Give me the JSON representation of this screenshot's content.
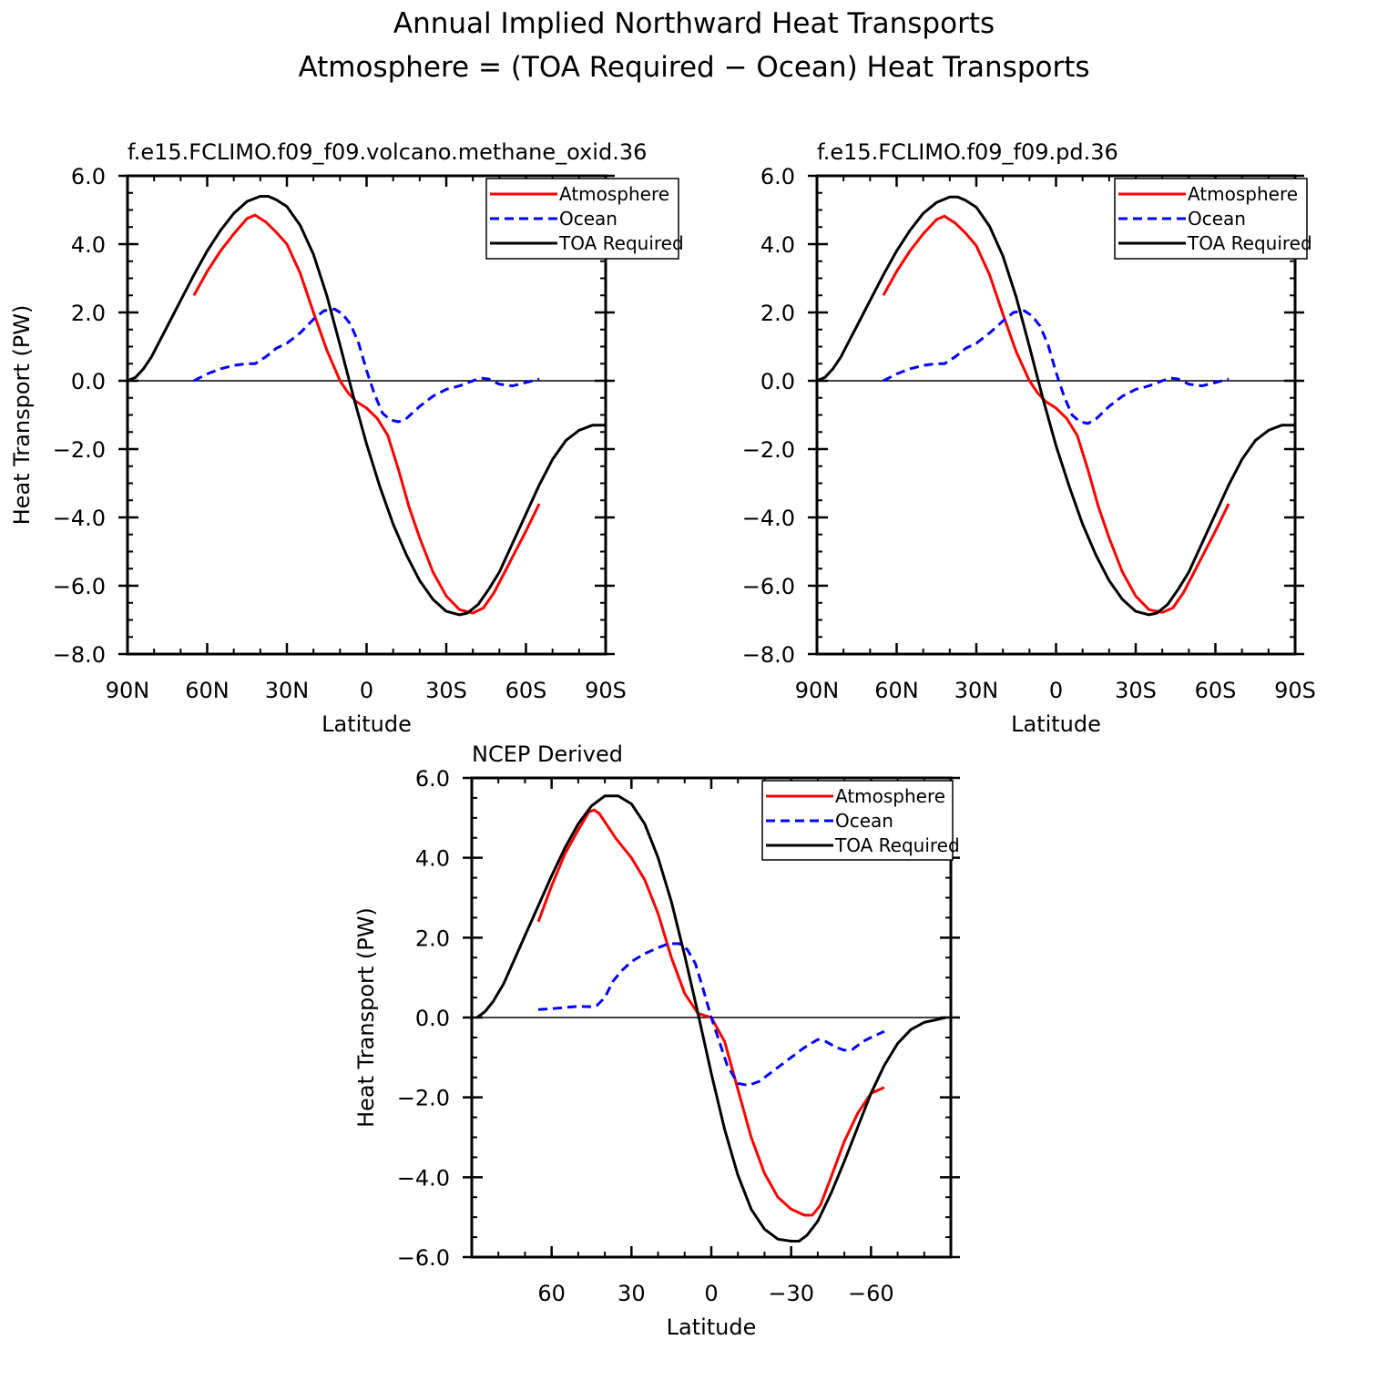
{
  "figure": {
    "title_line1": "Annual Implied Northward Heat Transports",
    "title_line2": "Atmosphere = (TOA Required − Ocean) Heat Transports"
  },
  "chart_data": [
    {
      "type": "line",
      "title": "f.e15.FCLIMO.f09_f09.volcano.methane_oxid.36",
      "xlabel": "Latitude",
      "ylabel": "Heat Transport (PW)",
      "xlim": [
        90,
        -90
      ],
      "ylim": [
        -8,
        6
      ],
      "xticks": [
        {
          "v": 90,
          "label": "90N"
        },
        {
          "v": 60,
          "label": "60N"
        },
        {
          "v": 30,
          "label": "30N"
        },
        {
          "v": 0,
          "label": "0"
        },
        {
          "v": -30,
          "label": "30S"
        },
        {
          "v": -60,
          "label": "60S"
        },
        {
          "v": -90,
          "label": "90S"
        }
      ],
      "yticks": [
        {
          "v": 6,
          "label": "6.0"
        },
        {
          "v": 4,
          "label": "4.0"
        },
        {
          "v": 2,
          "label": "2.0"
        },
        {
          "v": 0,
          "label": "0.0"
        },
        {
          "v": -2,
          "label": "−2.0"
        },
        {
          "v": -4,
          "label": "−4.0"
        },
        {
          "v": -6,
          "label": "−6.0"
        },
        {
          "v": -8,
          "label": "−8.0"
        }
      ],
      "xminor": 10,
      "yminor": 0.5,
      "zero_line": true,
      "legend": "top-right",
      "series": [
        {
          "name": "Atmosphere",
          "color": "#ff0000",
          "dash": "solid",
          "x": [
            65,
            60,
            55,
            50,
            45,
            42,
            38,
            34,
            30,
            25,
            20,
            15,
            10,
            7,
            4,
            0,
            -4,
            -8,
            -12,
            -16,
            -20,
            -25,
            -30,
            -35,
            -40,
            -44,
            -48,
            -52,
            -56,
            -60,
            -65
          ],
          "y": [
            2.5,
            3.2,
            3.8,
            4.3,
            4.75,
            4.85,
            4.65,
            4.35,
            4.0,
            3.15,
            2.0,
            0.9,
            0.0,
            -0.35,
            -0.6,
            -0.8,
            -1.1,
            -1.6,
            -2.6,
            -3.7,
            -4.6,
            -5.6,
            -6.3,
            -6.7,
            -6.8,
            -6.65,
            -6.2,
            -5.6,
            -5.0,
            -4.4,
            -3.6
          ]
        },
        {
          "name": "Ocean",
          "color": "#0000ff",
          "dash": "dashed",
          "x": [
            65,
            60,
            55,
            50,
            45,
            42,
            38,
            34,
            30,
            25,
            20,
            16,
            12,
            9,
            6,
            3,
            0,
            -3,
            -6,
            -9,
            -12,
            -15,
            -20,
            -25,
            -30,
            -35,
            -40,
            -43,
            -46,
            -50,
            -55,
            -60,
            -65
          ],
          "y": [
            0.0,
            0.2,
            0.35,
            0.45,
            0.5,
            0.5,
            0.7,
            0.95,
            1.1,
            1.4,
            1.8,
            2.05,
            2.1,
            1.95,
            1.65,
            1.1,
            0.3,
            -0.4,
            -0.95,
            -1.15,
            -1.2,
            -1.1,
            -0.75,
            -0.45,
            -0.25,
            -0.15,
            0.0,
            0.08,
            0.05,
            -0.1,
            -0.15,
            -0.05,
            0.05
          ]
        },
        {
          "name": "TOA Required",
          "color": "#000000",
          "dash": "solid",
          "x": [
            90,
            87,
            84,
            81,
            78,
            75,
            70,
            65,
            60,
            55,
            50,
            45,
            40,
            37,
            34,
            30,
            25,
            20,
            15,
            10,
            5,
            0,
            -5,
            -10,
            -15,
            -20,
            -25,
            -30,
            -35,
            -38,
            -42,
            -46,
            -50,
            -55,
            -60,
            -65,
            -70,
            -75,
            -80,
            -85,
            -90
          ],
          "y": [
            0.0,
            0.1,
            0.35,
            0.7,
            1.15,
            1.6,
            2.35,
            3.1,
            3.8,
            4.4,
            4.9,
            5.25,
            5.4,
            5.4,
            5.3,
            5.1,
            4.55,
            3.7,
            2.5,
            1.05,
            -0.45,
            -1.85,
            -3.1,
            -4.2,
            -5.1,
            -5.85,
            -6.4,
            -6.75,
            -6.85,
            -6.8,
            -6.55,
            -6.1,
            -5.6,
            -4.75,
            -3.9,
            -3.05,
            -2.3,
            -1.75,
            -1.45,
            -1.3,
            -1.3
          ]
        }
      ]
    },
    {
      "type": "line",
      "title": "f.e15.FCLIMO.f09_f09.pd.36",
      "xlabel": "Latitude",
      "ylabel": "",
      "xlim": [
        90,
        -90
      ],
      "ylim": [
        -8,
        6
      ],
      "xticks": [
        {
          "v": 90,
          "label": "90N"
        },
        {
          "v": 60,
          "label": "60N"
        },
        {
          "v": 30,
          "label": "30N"
        },
        {
          "v": 0,
          "label": "0"
        },
        {
          "v": -30,
          "label": "30S"
        },
        {
          "v": -60,
          "label": "60S"
        },
        {
          "v": -90,
          "label": "90S"
        }
      ],
      "yticks": [
        {
          "v": 6,
          "label": "6.0"
        },
        {
          "v": 4,
          "label": "4.0"
        },
        {
          "v": 2,
          "label": "2.0"
        },
        {
          "v": 0,
          "label": "0.0"
        },
        {
          "v": -2,
          "label": "−2.0"
        },
        {
          "v": -4,
          "label": "−4.0"
        },
        {
          "v": -6,
          "label": "−6.0"
        },
        {
          "v": -8,
          "label": "−8.0"
        }
      ],
      "xminor": 10,
      "yminor": 0.5,
      "zero_line": true,
      "legend": "top-right",
      "series": [
        {
          "name": "Atmosphere",
          "color": "#ff0000",
          "dash": "solid",
          "x": [
            65,
            60,
            55,
            50,
            45,
            42,
            38,
            34,
            30,
            25,
            20,
            15,
            10,
            7,
            4,
            0,
            -4,
            -8,
            -12,
            -16,
            -20,
            -25,
            -30,
            -35,
            -40,
            -44,
            -48,
            -52,
            -56,
            -60,
            -65
          ],
          "y": [
            2.5,
            3.2,
            3.8,
            4.3,
            4.72,
            4.82,
            4.62,
            4.32,
            3.95,
            3.1,
            1.95,
            0.85,
            0.0,
            -0.35,
            -0.6,
            -0.8,
            -1.1,
            -1.6,
            -2.6,
            -3.7,
            -4.6,
            -5.6,
            -6.3,
            -6.7,
            -6.78,
            -6.65,
            -6.2,
            -5.6,
            -5.0,
            -4.4,
            -3.6
          ]
        },
        {
          "name": "Ocean",
          "color": "#0000ff",
          "dash": "dashed",
          "x": [
            65,
            60,
            55,
            50,
            45,
            42,
            38,
            34,
            30,
            25,
            20,
            16,
            12,
            9,
            6,
            3,
            0,
            -3,
            -6,
            -9,
            -12,
            -15,
            -20,
            -25,
            -30,
            -35,
            -40,
            -43,
            -46,
            -50,
            -55,
            -60,
            -65
          ],
          "y": [
            0.0,
            0.2,
            0.35,
            0.45,
            0.5,
            0.5,
            0.7,
            0.95,
            1.1,
            1.4,
            1.75,
            2.0,
            2.05,
            1.9,
            1.6,
            1.05,
            0.25,
            -0.45,
            -1.0,
            -1.2,
            -1.25,
            -1.12,
            -0.75,
            -0.45,
            -0.25,
            -0.15,
            0.0,
            0.08,
            0.05,
            -0.1,
            -0.15,
            -0.05,
            0.05
          ]
        },
        {
          "name": "TOA Required",
          "color": "#000000",
          "dash": "solid",
          "x": [
            90,
            87,
            84,
            81,
            78,
            75,
            70,
            65,
            60,
            55,
            50,
            45,
            40,
            37,
            34,
            30,
            25,
            20,
            15,
            10,
            5,
            0,
            -5,
            -10,
            -15,
            -20,
            -25,
            -30,
            -35,
            -38,
            -42,
            -46,
            -50,
            -55,
            -60,
            -65,
            -70,
            -75,
            -80,
            -85,
            -90
          ],
          "y": [
            0.0,
            0.1,
            0.35,
            0.7,
            1.15,
            1.6,
            2.35,
            3.1,
            3.8,
            4.4,
            4.9,
            5.22,
            5.38,
            5.38,
            5.28,
            5.08,
            4.52,
            3.65,
            2.45,
            1.0,
            -0.5,
            -1.9,
            -3.1,
            -4.2,
            -5.1,
            -5.85,
            -6.4,
            -6.75,
            -6.85,
            -6.8,
            -6.55,
            -6.1,
            -5.6,
            -4.75,
            -3.9,
            -3.05,
            -2.3,
            -1.75,
            -1.45,
            -1.3,
            -1.3
          ]
        }
      ]
    },
    {
      "type": "line",
      "title": "NCEP Derived",
      "xlabel": "Latitude",
      "ylabel": "Heat Transport (PW)",
      "xlim": [
        90,
        -90
      ],
      "ylim": [
        -6,
        6
      ],
      "xticks": [
        {
          "v": 60,
          "label": "60"
        },
        {
          "v": 30,
          "label": "30"
        },
        {
          "v": 0,
          "label": "0"
        },
        {
          "v": -30,
          "label": "−30"
        },
        {
          "v": -60,
          "label": "−60"
        }
      ],
      "yticks": [
        {
          "v": 6,
          "label": "6.0"
        },
        {
          "v": 4,
          "label": "4.0"
        },
        {
          "v": 2,
          "label": "2.0"
        },
        {
          "v": 0,
          "label": "0.0"
        },
        {
          "v": -2,
          "label": "−2.0"
        },
        {
          "v": -4,
          "label": "−4.0"
        },
        {
          "v": -6,
          "label": "−6.0"
        }
      ],
      "xminor": 10,
      "yminor": 0.5,
      "zero_line": true,
      "legend": "top-right",
      "series": [
        {
          "name": "Atmosphere",
          "color": "#ff0000",
          "dash": "solid",
          "x": [
            65,
            60,
            55,
            50,
            46,
            44,
            42,
            39,
            36,
            30,
            25,
            20,
            15,
            10,
            5,
            0,
            -5,
            -10,
            -15,
            -20,
            -25,
            -30,
            -35,
            -38,
            -41,
            -45,
            -50,
            -55,
            -60,
            -65
          ],
          "y": [
            2.4,
            3.3,
            4.1,
            4.7,
            5.15,
            5.2,
            5.1,
            4.8,
            4.5,
            4.0,
            3.45,
            2.6,
            1.5,
            0.6,
            0.1,
            0.0,
            -0.6,
            -1.8,
            -3.0,
            -3.9,
            -4.5,
            -4.8,
            -4.95,
            -4.95,
            -4.7,
            -4.0,
            -3.1,
            -2.4,
            -1.9,
            -1.75
          ]
        },
        {
          "name": "Ocean",
          "color": "#0000ff",
          "dash": "dashed",
          "x": [
            65,
            60,
            55,
            50,
            45,
            43,
            40,
            37,
            34,
            30,
            25,
            20,
            16,
            12,
            9,
            6,
            3,
            0,
            -3,
            -6,
            -10,
            -14,
            -18,
            -22,
            -26,
            -30,
            -35,
            -40,
            -43,
            -47,
            -50,
            -53,
            -57,
            -60,
            -65
          ],
          "y": [
            0.2,
            0.22,
            0.25,
            0.28,
            0.27,
            0.3,
            0.5,
            0.9,
            1.15,
            1.4,
            1.6,
            1.75,
            1.85,
            1.85,
            1.7,
            1.35,
            0.7,
            0.0,
            -0.6,
            -1.2,
            -1.65,
            -1.7,
            -1.6,
            -1.4,
            -1.2,
            -1.0,
            -0.75,
            -0.55,
            -0.6,
            -0.75,
            -0.82,
            -0.8,
            -0.6,
            -0.5,
            -0.35
          ]
        },
        {
          "name": "TOA Required",
          "color": "#000000",
          "dash": "solid",
          "x": [
            88,
            85,
            82,
            78,
            74,
            70,
            65,
            60,
            55,
            50,
            45,
            40,
            35,
            30,
            25,
            20,
            15,
            10,
            5,
            0,
            -5,
            -10,
            -15,
            -20,
            -25,
            -30,
            -33,
            -36,
            -40,
            -45,
            -50,
            -55,
            -60,
            -65,
            -70,
            -75,
            -80,
            -85,
            -88
          ],
          "y": [
            0.0,
            0.15,
            0.4,
            0.85,
            1.45,
            2.05,
            2.8,
            3.55,
            4.25,
            4.85,
            5.3,
            5.55,
            5.55,
            5.35,
            4.85,
            4.0,
            2.9,
            1.55,
            0.1,
            -1.4,
            -2.8,
            -3.95,
            -4.8,
            -5.3,
            -5.55,
            -5.6,
            -5.6,
            -5.45,
            -5.1,
            -4.4,
            -3.6,
            -2.75,
            -1.9,
            -1.2,
            -0.65,
            -0.3,
            -0.12,
            -0.05,
            0.0
          ]
        }
      ]
    }
  ]
}
